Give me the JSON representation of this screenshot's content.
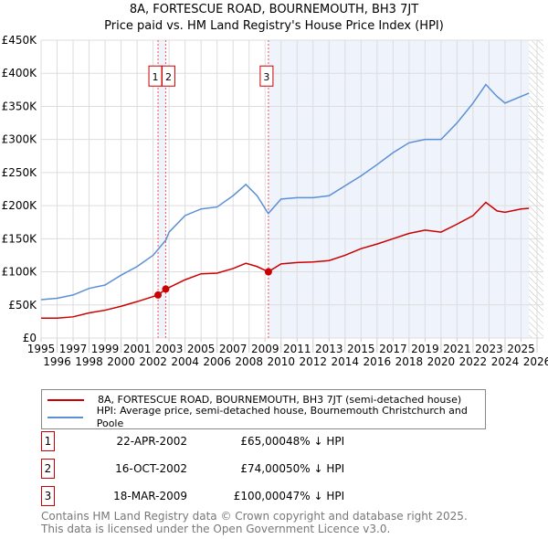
{
  "title": "8A, FORTESCUE ROAD, BOURNEMOUTH, BH3 7JT",
  "subtitle": "Price paid vs. HM Land Registry's House Price Index (HPI)",
  "chart_data": {
    "type": "line",
    "xlim": [
      1995,
      2026.4
    ],
    "ylim": [
      0,
      450000
    ],
    "x_ticks": [
      "1995",
      "1996",
      "1997",
      "1998",
      "1999",
      "2000",
      "2001",
      "2002",
      "2003",
      "2004",
      "2005",
      "2006",
      "2007",
      "2008",
      "2009",
      "2010",
      "2011",
      "2012",
      "2013",
      "2014",
      "2015",
      "2016",
      "2017",
      "2018",
      "2019",
      "2020",
      "2021",
      "2022",
      "2023",
      "2024",
      "2025",
      "2026"
    ],
    "y_ticks": [
      {
        "v": 0,
        "label": "£0"
      },
      {
        "v": 50000,
        "label": "£50K"
      },
      {
        "v": 100000,
        "label": "£100K"
      },
      {
        "v": 150000,
        "label": "£150K"
      },
      {
        "v": 200000,
        "label": "£200K"
      },
      {
        "v": 250000,
        "label": "£250K"
      },
      {
        "v": 300000,
        "label": "£300K"
      },
      {
        "v": 350000,
        "label": "£350K"
      },
      {
        "v": 400000,
        "label": "£400K"
      },
      {
        "v": 450000,
        "label": "£450K"
      }
    ],
    "series": [
      {
        "name": "8A, FORTESCUE ROAD, BOURNEMOUTH, BH3 7JT (semi-detached house)",
        "color": "#cc0000",
        "x": [
          1995,
          1996,
          1997,
          1998,
          1999,
          2000,
          2001,
          2002.3,
          2002.8,
          2004,
          2005,
          2006,
          2007,
          2007.8,
          2008.5,
          2009.2,
          2010,
          2011,
          2012,
          2013,
          2014,
          2015,
          2016,
          2017,
          2018,
          2019,
          2020,
          2021,
          2022,
          2022.8,
          2023.5,
          2024,
          2025,
          2025.5
        ],
        "y": [
          30000,
          30000,
          32000,
          38000,
          42000,
          48000,
          55000,
          65000,
          74000,
          88000,
          97000,
          98000,
          105000,
          113000,
          108000,
          100000,
          112000,
          114000,
          115000,
          117000,
          125000,
          135000,
          142000,
          150000,
          158000,
          163000,
          160000,
          172000,
          185000,
          205000,
          192000,
          190000,
          195000,
          196000
        ]
      },
      {
        "name": "HPI: Average price, semi-detached house, Bournemouth Christchurch and Poole",
        "color": "#5b8fd6",
        "x": [
          1995,
          1996,
          1997,
          1998,
          1999,
          2000,
          2001,
          2002,
          2002.8,
          2003,
          2004,
          2005,
          2006,
          2007,
          2007.8,
          2008.5,
          2009.2,
          2010,
          2011,
          2012,
          2013,
          2014,
          2015,
          2016,
          2017,
          2018,
          2019,
          2020,
          2021,
          2022,
          2022.8,
          2023.5,
          2024,
          2025,
          2025.5
        ],
        "y": [
          58000,
          60000,
          65000,
          75000,
          80000,
          95000,
          108000,
          125000,
          148000,
          160000,
          185000,
          195000,
          198000,
          215000,
          232000,
          215000,
          188000,
          210000,
          212000,
          212000,
          215000,
          230000,
          245000,
          262000,
          280000,
          295000,
          300000,
          300000,
          325000,
          355000,
          383000,
          365000,
          355000,
          365000,
          370000
        ]
      }
    ],
    "sales": [
      {
        "id": "1",
        "x": 2002.31,
        "y": 65000,
        "date": "22-APR-2002",
        "price": "£65,000",
        "hpi": "48% ↓ HPI"
      },
      {
        "id": "2",
        "x": 2002.79,
        "y": 74000,
        "date": "16-OCT-2002",
        "price": "£74,000",
        "hpi": "50% ↓ HPI"
      },
      {
        "id": "3",
        "x": 2009.21,
        "y": 100000,
        "date": "18-MAR-2009",
        "price": "£100,000",
        "hpi": "47% ↓ HPI"
      }
    ]
  },
  "footer": [
    "Contains HM Land Registry data © Crown copyright and database right 2025.",
    "This data is licensed under the Open Government Licence v3.0."
  ]
}
